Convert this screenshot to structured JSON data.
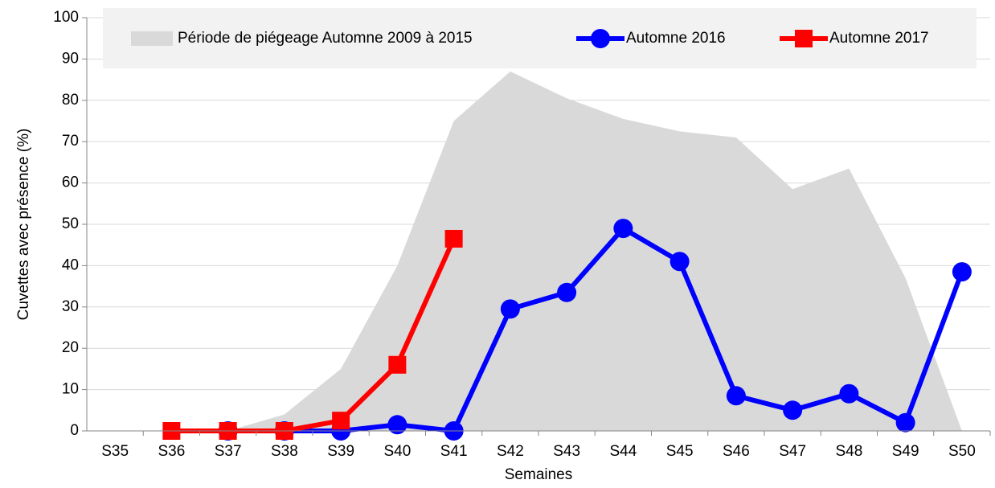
{
  "chart_data": {
    "type": "line",
    "x_label": "Semaines",
    "y_label": "Cuvettes avec présence (%)",
    "categories": [
      "S35",
      "S36",
      "S37",
      "S38",
      "S39",
      "S40",
      "S41",
      "S42",
      "S43",
      "S44",
      "S45",
      "S46",
      "S47",
      "S48",
      "S49",
      "S50"
    ],
    "ylim": [
      0,
      100
    ],
    "yticks": [
      0,
      10,
      20,
      30,
      40,
      50,
      60,
      70,
      80,
      90,
      100
    ],
    "grid": true,
    "series": [
      {
        "name": "Période de piégeage Automne 2009 à 2015",
        "kind": "area",
        "color": "#d9d9d9",
        "values": [
          null,
          null,
          0,
          4,
          15,
          40,
          75,
          87,
          80.5,
          75.5,
          72.5,
          71,
          58.5,
          63.5,
          37,
          0
        ]
      },
      {
        "name": "Automne 2016",
        "kind": "line",
        "marker": "circle",
        "color": "#0000ff",
        "values": [
          null,
          null,
          0,
          0,
          0,
          1.5,
          0,
          29.5,
          33.5,
          49,
          41,
          8.5,
          5,
          9,
          2,
          38.5
        ]
      },
      {
        "name": "Automne 2017",
        "kind": "line",
        "marker": "square",
        "color": "#ff0000",
        "values": [
          null,
          0,
          0,
          0,
          2.5,
          16,
          46.5,
          null,
          null,
          null,
          null,
          null,
          null,
          null,
          null,
          null
        ]
      }
    ]
  }
}
